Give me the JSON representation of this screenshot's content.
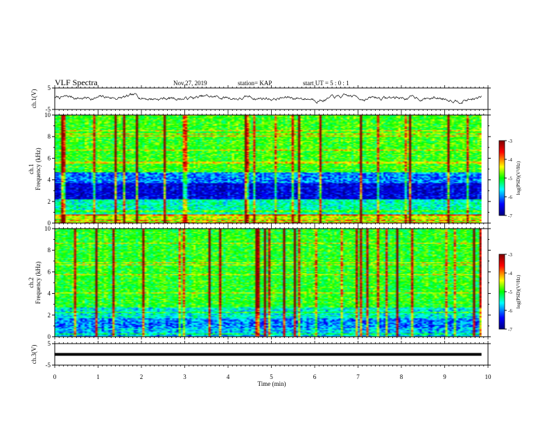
{
  "header": {
    "title": "VLF Spectra",
    "date": "Nov.27, 2019",
    "station": "station= KAP",
    "start": "start  UT =   5 : 0  : 1"
  },
  "chart_data": [
    {
      "type": "line",
      "name": "ch1-waveform",
      "ylabel": "ch.1(V)",
      "ylim": [
        -5,
        5
      ],
      "yticks": [
        "5",
        "-5"
      ],
      "xlim": [
        0,
        10
      ],
      "description_values": {
        "mean": 0.4,
        "range": [
          -3.5,
          3.8
        ]
      }
    },
    {
      "type": "heatmap",
      "name": "ch1-spectrogram",
      "ylabel": "ch.1\nFrequency  (kHz)",
      "ylabel_lines": [
        "ch.1",
        "Frequency  (kHz)"
      ],
      "ylim": [
        0,
        10
      ],
      "yticks": [
        "0",
        "2",
        "4",
        "6",
        "8",
        "10"
      ],
      "xlim": [
        0,
        10
      ],
      "colorbar": {
        "label": "log(PSD)(V²/Hz)",
        "ticks": [
          "-3",
          "-4",
          "-5",
          "-6",
          "-7"
        ],
        "range": [
          -7,
          -3
        ]
      }
    },
    {
      "type": "heatmap",
      "name": "ch2-spectrogram",
      "ylabel_lines": [
        "ch.2",
        "Frequency  (kHz)"
      ],
      "ylim": [
        0,
        10
      ],
      "yticks": [
        "0",
        "2",
        "4",
        "6",
        "8",
        "10"
      ],
      "xlim": [
        0,
        10
      ],
      "colorbar": {
        "label": "log(PSD)(V²/Hz)",
        "ticks": [
          "-3",
          "-4",
          "-5",
          "-6",
          "-7"
        ],
        "range": [
          -7,
          -3
        ]
      }
    },
    {
      "type": "line",
      "name": "ch3-waveform",
      "ylabel": "ch.3(V)",
      "ylim": [
        -5,
        5
      ],
      "yticks": [
        "5",
        "-5"
      ],
      "xlim": [
        0,
        10
      ],
      "constant_value": 0
    }
  ],
  "xaxis": {
    "label": "Time  (min)",
    "ticks": [
      "0",
      "1",
      "2",
      "3",
      "4",
      "5",
      "6",
      "7",
      "8",
      "9",
      "10"
    ]
  },
  "colors": {
    "colormap": [
      "#00007f",
      "#0000ff",
      "#00ffff",
      "#00ff00",
      "#ffff00",
      "#ff0000",
      "#7f0000"
    ]
  }
}
